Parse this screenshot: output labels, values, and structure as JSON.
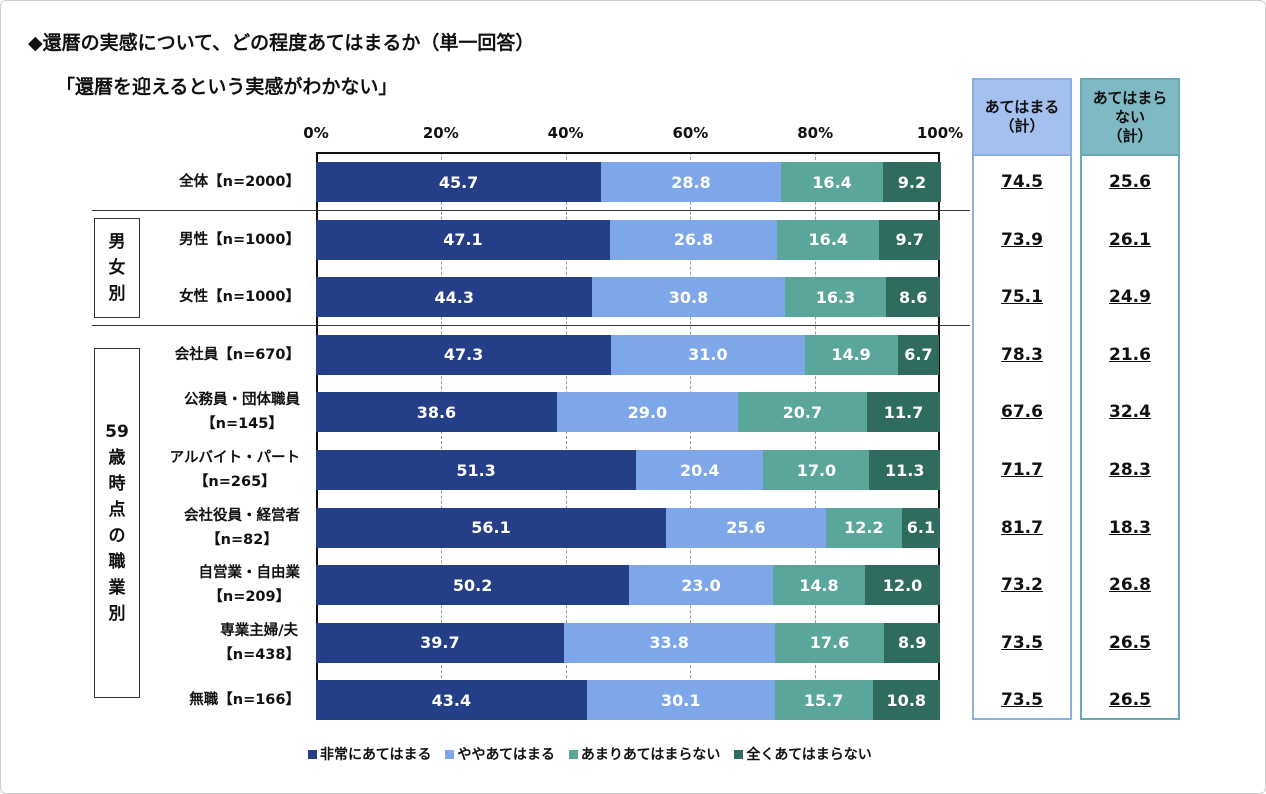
{
  "title": "◆還暦の実感について、どの程度あてはまるか（単一回答）",
  "subtitle": "「還暦を迎えるという実感がわかない」",
  "chart_data": {
    "type": "bar",
    "orientation": "horizontal-stacked-100",
    "xlim": [
      0,
      100
    ],
    "ticks": [
      "0%",
      "20%",
      "40%",
      "60%",
      "80%",
      "100%"
    ],
    "grid": true,
    "legend_position": "bottom",
    "series": [
      {
        "name": "非常にあてはまる",
        "color": "#243e87"
      },
      {
        "name": "ややあてはまる",
        "color": "#7da7e8"
      },
      {
        "name": "あまりあてはまらない",
        "color": "#5aa69a"
      },
      {
        "name": "全くあてはまらない",
        "color": "#2f6b5e"
      }
    ],
    "rows": [
      {
        "label": [
          "全体【n=2000】"
        ],
        "values": [
          45.7,
          28.8,
          16.4,
          9.2
        ],
        "sum_yes": "74.5",
        "sum_no": "25.6"
      },
      {
        "label": [
          "男性【n=1000】"
        ],
        "values": [
          47.1,
          26.8,
          16.4,
          9.7
        ],
        "sum_yes": "73.9",
        "sum_no": "26.1"
      },
      {
        "label": [
          "女性【n=1000】"
        ],
        "values": [
          44.3,
          30.8,
          16.3,
          8.6
        ],
        "sum_yes": "75.1",
        "sum_no": "24.9"
      },
      {
        "label": [
          "会社員【n=670】"
        ],
        "values": [
          47.3,
          31.0,
          14.9,
          6.7
        ],
        "sum_yes": "78.3",
        "sum_no": "21.6"
      },
      {
        "label": [
          "公務員・団体職員",
          "【n=145】"
        ],
        "values": [
          38.6,
          29.0,
          20.7,
          11.7
        ],
        "sum_yes": "67.6",
        "sum_no": "32.4"
      },
      {
        "label": [
          "アルバイト・パート",
          "【n=265】"
        ],
        "values": [
          51.3,
          20.4,
          17.0,
          11.3
        ],
        "sum_yes": "71.7",
        "sum_no": "28.3"
      },
      {
        "label": [
          "会社役員・経営者",
          "【n=82】"
        ],
        "values": [
          56.1,
          25.6,
          12.2,
          6.1
        ],
        "sum_yes": "81.7",
        "sum_no": "18.3"
      },
      {
        "label": [
          "自営業・自由業",
          "【n=209】"
        ],
        "values": [
          50.2,
          23.0,
          14.8,
          12.0
        ],
        "sum_yes": "73.2",
        "sum_no": "26.8"
      },
      {
        "label": [
          "専業主婦/夫",
          "【n=438】"
        ],
        "values": [
          39.7,
          33.8,
          17.6,
          8.9
        ],
        "sum_yes": "73.5",
        "sum_no": "26.5"
      },
      {
        "label": [
          "無職【n=166】"
        ],
        "values": [
          43.4,
          30.1,
          15.7,
          10.8
        ],
        "sum_yes": "73.5",
        "sum_no": "26.5"
      }
    ],
    "groups": [
      {
        "label": [
          "男",
          "女",
          "別"
        ],
        "rows": [
          1,
          2
        ]
      },
      {
        "label": [
          "59",
          "歳",
          "時",
          "点",
          "の",
          "職",
          "業",
          "別"
        ],
        "rows": [
          3,
          9
        ]
      }
    ],
    "summary_headers": [
      [
        "あてはまる",
        "（計）"
      ],
      [
        "あてはまら",
        "ない",
        "（計）"
      ]
    ]
  }
}
